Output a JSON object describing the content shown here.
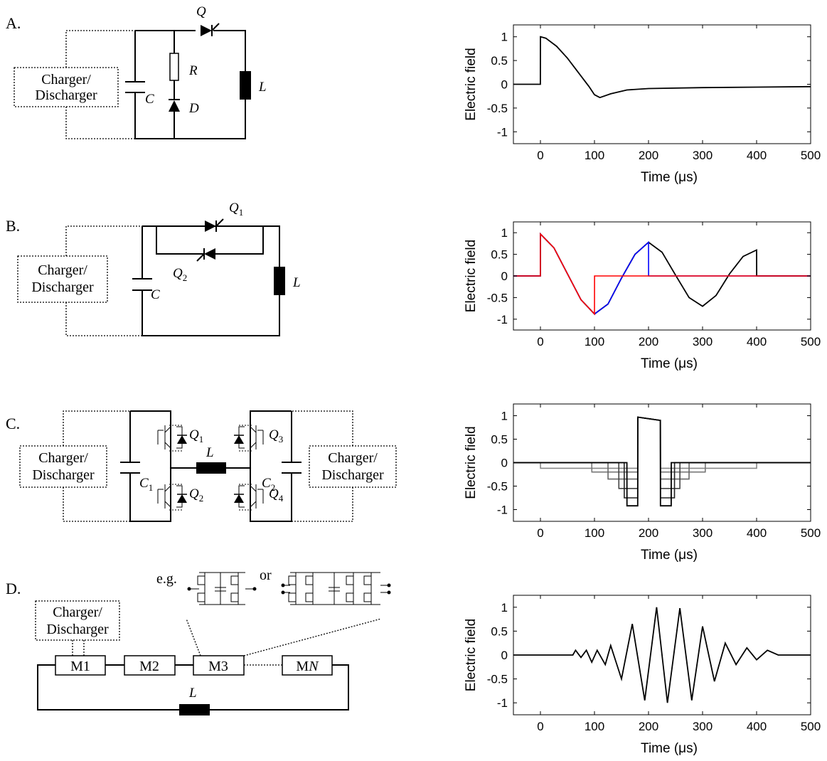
{
  "panels": [
    {
      "label": "A.",
      "components": {
        "charger": [
          "Charger/",
          "Discharger"
        ],
        "cap": "C",
        "switch": "Q",
        "resistor": "R",
        "diode": "D",
        "inductor": "L"
      },
      "plot": {
        "ylabel": "Electric field",
        "xlabel": "Time (μs)"
      }
    },
    {
      "label": "B.",
      "components": {
        "charger": [
          "Charger/",
          "Discharger"
        ],
        "cap": "C",
        "switch1": "Q",
        "switch1_sub": "1",
        "switch2": "Q",
        "switch2_sub": "2",
        "inductor": "L"
      },
      "plot": {
        "ylabel": "Electric field",
        "xlabel": "Time (μs)"
      }
    },
    {
      "label": "C.",
      "components": {
        "charger_left": [
          "Charger/",
          "Discharger"
        ],
        "charger_right": [
          "Charger/",
          "Discharger"
        ],
        "cap1": "C",
        "cap1_sub": "1",
        "cap2": "C",
        "cap2_sub": "2",
        "inductor": "L",
        "q1": "Q",
        "q1_sub": "1",
        "q2": "Q",
        "q2_sub": "2",
        "q3": "Q",
        "q3_sub": "3",
        "q4": "Q",
        "q4_sub": "4"
      },
      "plot": {
        "ylabel": "Electric field",
        "xlabel": "Time (μs)"
      }
    },
    {
      "label": "D.",
      "components": {
        "charger": [
          "Charger/",
          "Discharger"
        ],
        "modules": [
          "M1",
          "M2",
          "M3"
        ],
        "module_n_prefix": "M",
        "module_n_suffix": "N",
        "inductor": "L",
        "eg": "e.g.",
        "or": "or"
      },
      "plot": {
        "ylabel": "Electric field",
        "xlabel": "Time (μs)"
      }
    }
  ],
  "chart_data": [
    {
      "type": "line",
      "xlabel": "Time (μs)",
      "ylabel": "Electric field",
      "xlim": [
        -50,
        500
      ],
      "ylim": [
        -1.25,
        1.25
      ],
      "xticks": [
        0,
        100,
        200,
        300,
        400,
        500
      ],
      "yticks": [
        1,
        0.5,
        0,
        -0.5,
        -1
      ],
      "series": [
        {
          "color": "#000000",
          "x": [
            -50,
            -0.1,
            0,
            10,
            30,
            50,
            70,
            90,
            100,
            110,
            130,
            160,
            200,
            300,
            400,
            500
          ],
          "y": [
            0,
            0,
            1.0,
            0.97,
            0.8,
            0.55,
            0.25,
            -0.05,
            -0.22,
            -0.28,
            -0.2,
            -0.12,
            -0.09,
            -0.07,
            -0.06,
            -0.05
          ]
        }
      ]
    },
    {
      "type": "line",
      "xlabel": "Time (μs)",
      "ylabel": "Electric field",
      "xlim": [
        -50,
        500
      ],
      "ylim": [
        -1.25,
        1.25
      ],
      "xticks": [
        0,
        100,
        200,
        300,
        400,
        500
      ],
      "yticks": [
        1,
        0.5,
        0,
        -0.5,
        -1
      ],
      "series": [
        {
          "color": "#000000",
          "x": [
            -50,
            -0.1,
            0,
            25,
            50,
            75,
            100,
            125,
            150,
            175,
            200,
            225,
            250,
            275,
            300,
            325,
            350,
            375,
            400,
            400.1,
            500
          ],
          "y": [
            0,
            0,
            0.97,
            0.65,
            0.05,
            -0.55,
            -0.88,
            -0.65,
            -0.05,
            0.5,
            0.78,
            0.55,
            0.02,
            -0.5,
            -0.7,
            -0.45,
            0.05,
            0.45,
            0.6,
            0,
            0
          ]
        },
        {
          "color": "#0000ff",
          "x": [
            -50,
            -0.1,
            0,
            25,
            50,
            75,
            100,
            125,
            150,
            175,
            200,
            200.1,
            500
          ],
          "y": [
            0,
            0,
            0.97,
            0.65,
            0.05,
            -0.55,
            -0.88,
            -0.65,
            -0.05,
            0.5,
            0.78,
            0,
            0
          ]
        },
        {
          "color": "#ff0000",
          "x": [
            -50,
            -0.1,
            0,
            25,
            50,
            75,
            100,
            100.1,
            500
          ],
          "y": [
            0,
            0,
            0.97,
            0.65,
            0.05,
            -0.55,
            -0.88,
            0,
            0
          ]
        }
      ]
    },
    {
      "type": "line",
      "xlabel": "Time (μs)",
      "ylabel": "Electric field",
      "xlim": [
        -50,
        500
      ],
      "ylim": [
        -1.25,
        1.25
      ],
      "xticks": [
        0,
        100,
        200,
        300,
        400,
        500
      ],
      "yticks": [
        1,
        0.5,
        0,
        -0.5,
        -1
      ],
      "series": [
        {
          "color": "#888888",
          "x": [
            -50,
            0,
            0.1,
            180,
            180.1,
            222,
            222.1,
            400,
            400.1,
            500
          ],
          "y": [
            0,
            0,
            -0.12,
            -0.12,
            0.97,
            0.9,
            -0.12,
            -0.12,
            0,
            0
          ]
        },
        {
          "color": "#777777",
          "x": [
            -50,
            95,
            95.1,
            180,
            180.1,
            222,
            222.1,
            305,
            305.1,
            500
          ],
          "y": [
            0,
            0,
            -0.2,
            -0.2,
            0.97,
            0.9,
            -0.2,
            -0.2,
            0,
            0
          ]
        },
        {
          "color": "#666666",
          "x": [
            -50,
            125,
            125.1,
            180,
            180.1,
            222,
            222.1,
            275,
            275.1,
            500
          ],
          "y": [
            0,
            0,
            -0.35,
            -0.35,
            0.97,
            0.9,
            -0.35,
            -0.35,
            0,
            0
          ]
        },
        {
          "color": "#444444",
          "x": [
            -50,
            145,
            145.1,
            180,
            180.1,
            222,
            222.1,
            258,
            258.1,
            500
          ],
          "y": [
            0,
            0,
            -0.55,
            -0.55,
            0.97,
            0.9,
            -0.55,
            -0.55,
            0,
            0
          ]
        },
        {
          "color": "#222222",
          "x": [
            -50,
            155,
            155.1,
            180,
            180.1,
            222,
            222.1,
            248,
            248.1,
            500
          ],
          "y": [
            0,
            0,
            -0.75,
            -0.75,
            0.97,
            0.9,
            -0.75,
            -0.75,
            0,
            0
          ]
        },
        {
          "color": "#000000",
          "x": [
            -50,
            160,
            160.1,
            180,
            180.1,
            222,
            222.1,
            242,
            242.1,
            500
          ],
          "y": [
            0,
            0,
            -0.92,
            -0.92,
            0.97,
            0.9,
            -0.92,
            -0.92,
            0,
            0
          ]
        }
      ]
    },
    {
      "type": "line",
      "xlabel": "Time (μs)",
      "ylabel": "Electric field",
      "xlim": [
        -50,
        500
      ],
      "ylim": [
        -1.25,
        1.25
      ],
      "xticks": [
        0,
        100,
        200,
        300,
        400,
        500
      ],
      "yticks": [
        1,
        0.5,
        0,
        -0.5,
        -1
      ],
      "series": [
        {
          "color": "#000000",
          "x": [
            -50,
            60,
            65,
            75,
            85,
            95,
            105,
            120,
            130,
            150,
            170,
            193,
            215,
            235,
            258,
            280,
            300,
            322,
            342,
            362,
            382,
            400,
            420,
            440,
            500
          ],
          "y": [
            0,
            0,
            0.1,
            -0.05,
            0.1,
            -0.15,
            0.1,
            -0.2,
            0.2,
            -0.5,
            0.65,
            -0.95,
            1.0,
            -1.0,
            0.98,
            -0.95,
            0.6,
            -0.55,
            0.25,
            -0.2,
            0.15,
            -0.1,
            0.1,
            0,
            0
          ]
        }
      ]
    }
  ]
}
